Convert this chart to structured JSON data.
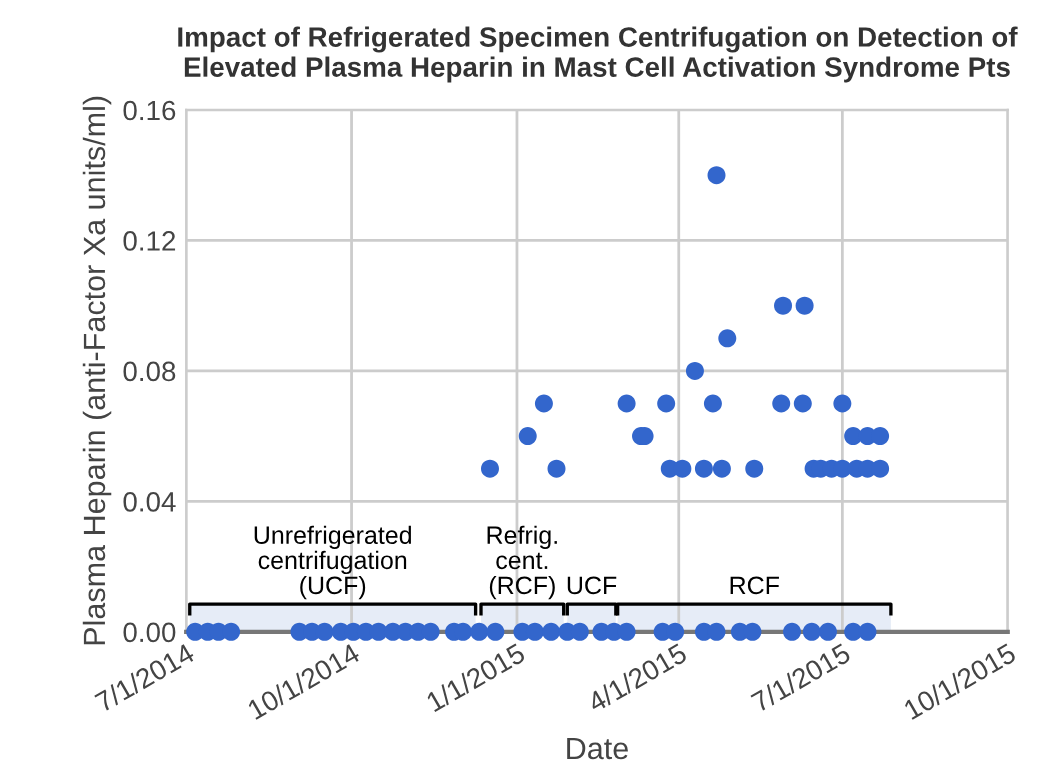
{
  "chart_data": {
    "type": "scatter",
    "title": "Impact of Refrigerated Specimen Centrifugation on Detection of\nElevated Plasma Heparin in Mast Cell Activation Syndrome Pts",
    "xlabel": "Date",
    "ylabel": "Plasma Heparin (anti-Factor Xa units/ml)",
    "x": [
      "2014-12-17",
      "2015-01-07",
      "2015-01-16",
      "2015-01-23",
      "2015-03-03",
      "2015-03-11",
      "2015-03-13",
      "2015-03-25",
      "2015-03-27",
      "2015-04-03",
      "2015-04-10",
      "2015-04-15",
      "2015-04-20",
      "2015-04-22",
      "2015-04-25",
      "2015-04-28",
      "2015-05-13",
      "2015-05-28",
      "2015-05-29",
      "2015-06-10",
      "2015-06-09",
      "2015-06-15",
      "2015-06-19",
      "2015-06-25",
      "2015-07-01",
      "2015-07-01",
      "2015-07-07",
      "2015-07-09",
      "2015-07-15",
      "2015-07-15",
      "2015-07-22",
      "2015-07-22",
      "2014-07-06",
      "2014-07-13",
      "2014-07-19",
      "2014-07-26",
      "2014-09-02",
      "2014-09-09",
      "2014-09-16",
      "2014-09-25",
      "2014-10-02",
      "2014-10-09",
      "2014-10-16",
      "2014-10-24",
      "2014-10-31",
      "2014-11-07",
      "2014-11-14",
      "2014-11-27",
      "2014-12-02",
      "2014-12-11",
      "2014-12-20",
      "2015-01-04",
      "2015-01-11",
      "2015-01-20",
      "2015-01-29",
      "2015-02-05",
      "2015-02-17",
      "2015-02-24",
      "2015-03-03",
      "2015-03-23",
      "2015-03-30",
      "2015-04-15",
      "2015-04-22",
      "2015-05-05",
      "2015-05-12",
      "2015-06-03",
      "2015-06-14",
      "2015-06-23",
      "2015-07-07",
      "2015-07-15"
    ],
    "series": [
      {
        "color": "#3366cc",
        "values": [
          0.05,
          0.06,
          0.07,
          0.05,
          0.07,
          0.06,
          0.06,
          0.07,
          0.05,
          0.05,
          0.08,
          0.05,
          0.07,
          0.14,
          0.05,
          0.09,
          0.05,
          0.07,
          0.1,
          0.1,
          0.07,
          0.05,
          0.05,
          0.05,
          0.07,
          0.05,
          0.06,
          0.05,
          0.06,
          0.05,
          0.06,
          0.05,
          0,
          0,
          0,
          0,
          0,
          0,
          0,
          0,
          0,
          0,
          0,
          0,
          0,
          0,
          0,
          0,
          0,
          0,
          0,
          0,
          0,
          0,
          0,
          0,
          0,
          0,
          0,
          0,
          0,
          0,
          0,
          0,
          0,
          0,
          0,
          0,
          0,
          0
        ]
      }
    ],
    "xlim": [
      "2014-07-01",
      "2015-10-01"
    ],
    "xticks": [
      {
        "value": "2014-07-01",
        "label": "7/1/2014"
      },
      {
        "value": "2014-10-01",
        "label": "10/1/2014"
      },
      {
        "value": "2015-01-01",
        "label": "1/1/2015"
      },
      {
        "value": "2015-04-01",
        "label": "4/1/2015"
      },
      {
        "value": "2015-07-01",
        "label": "7/1/2015"
      },
      {
        "value": "2015-10-01",
        "label": "10/1/2015"
      }
    ],
    "ylim": [
      0,
      0.16
    ],
    "yticks": [
      {
        "value": 0,
        "label": "0.00"
      },
      {
        "value": 0.04,
        "label": "0.04"
      },
      {
        "value": 0.08,
        "label": "0.08"
      },
      {
        "value": 0.12,
        "label": "0.12"
      },
      {
        "value": 0.16,
        "label": "0.16"
      }
    ],
    "bands": [
      {
        "axis": "x",
        "from": "2014-07-03",
        "to": "2014-12-09",
        "label": "Unrefrigerated\ncentrifugation\n(UCF)"
      },
      {
        "axis": "x",
        "from": "2014-12-12",
        "to": "2015-01-27",
        "label": "Refrig.\ncent.\n(RCF)"
      },
      {
        "axis": "x",
        "from": "2015-01-29",
        "to": "2015-02-25",
        "label": "UCF"
      },
      {
        "axis": "x",
        "from": "2015-02-26",
        "to": "2015-07-28",
        "label": "RCF"
      }
    ],
    "grid": true,
    "legend": false,
    "marker": "circle"
  }
}
